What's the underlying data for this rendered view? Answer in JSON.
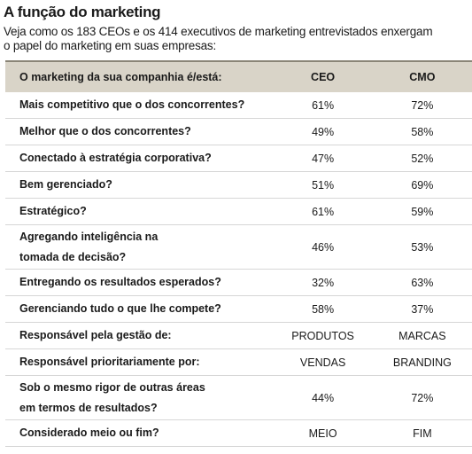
{
  "header": {
    "title": "A função do marketing",
    "subtitle": [
      "Veja como os 183 CEOs e os 414 executivos de marketing entrevistados enxergam",
      "o papel do marketing em suas empresas:"
    ]
  },
  "table": {
    "columns": [
      "O marketing da sua companhia é/está:",
      "CEO",
      "CMO"
    ],
    "rows": [
      {
        "label": [
          "Mais competitivo que o dos concorrentes?"
        ],
        "ceo": "61%",
        "cmo": "72%"
      },
      {
        "label": [
          "Melhor que o dos concorrentes?"
        ],
        "ceo": "49%",
        "cmo": "58%"
      },
      {
        "label": [
          "Conectado à estratégia corporativa?"
        ],
        "ceo": "47%",
        "cmo": "52%"
      },
      {
        "label": [
          "Bem gerenciado?"
        ],
        "ceo": "51%",
        "cmo": "69%"
      },
      {
        "label": [
          "Estratégico?"
        ],
        "ceo": "61%",
        "cmo": "59%"
      },
      {
        "label": [
          "Agregando inteligência na",
          "tomada de decisão?"
        ],
        "ceo": "46%",
        "cmo": "53%"
      },
      {
        "label": [
          "Entregando os resultados esperados?"
        ],
        "ceo": "32%",
        "cmo": "63%"
      },
      {
        "label": [
          "Gerenciando tudo o que lhe compete?"
        ],
        "ceo": "58%",
        "cmo": "37%"
      },
      {
        "label": [
          "Responsável pela gestão de:"
        ],
        "ceo": "PRODUTOS",
        "cmo": "MARCAS"
      },
      {
        "label": [
          "Responsável prioritariamente por:"
        ],
        "ceo": "VENDAS",
        "cmo": "BRANDING"
      },
      {
        "label": [
          "Sob o mesmo rigor de outras áreas",
          "em termos de resultados?"
        ],
        "ceo": "44%",
        "cmo": "72%"
      },
      {
        "label": [
          "Considerado meio ou fim?"
        ],
        "ceo": "MEIO",
        "cmo": "FIM"
      }
    ]
  }
}
